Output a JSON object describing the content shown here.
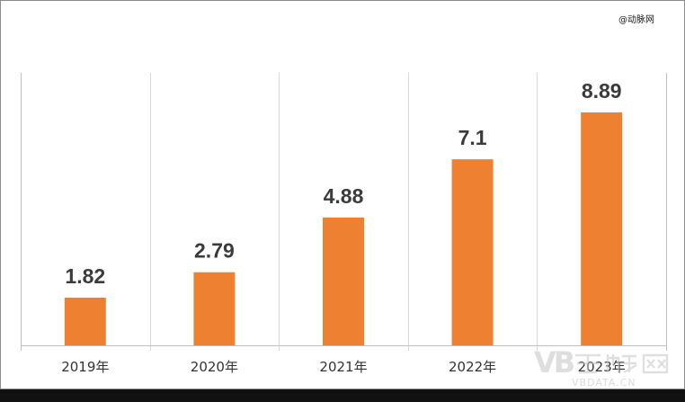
{
  "source_note": "@动脉网",
  "watermark": {
    "site": "VBDATA.CN"
  },
  "colors": {
    "bar": "#ED8131",
    "grid": "#D9D9D9",
    "axis": "#BFBFBF"
  },
  "chart_data": {
    "type": "bar",
    "categories": [
      "2019年",
      "2020年",
      "2021年",
      "2022年",
      "2023年"
    ],
    "values": [
      1.82,
      2.79,
      4.88,
      7.1,
      8.89
    ],
    "value_labels": [
      "1.82",
      "2.79",
      "4.88",
      "7.1",
      "8.89"
    ],
    "title": "",
    "xlabel": "",
    "ylabel": "",
    "ylim": [
      0,
      10.4
    ],
    "grid": "vertical",
    "legend": "none"
  }
}
